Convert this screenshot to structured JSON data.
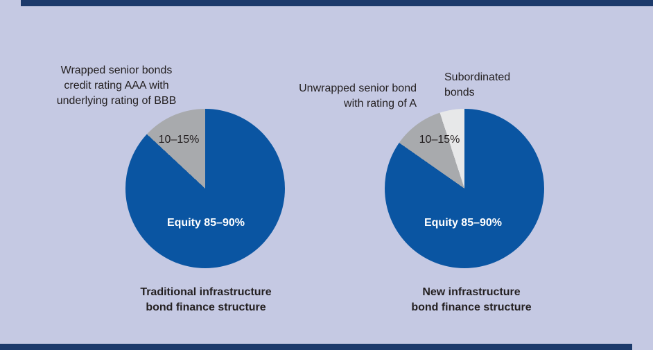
{
  "figure": {
    "background_color": "#c5c9e3",
    "rule_color": "#1c3a6b"
  },
  "colors": {
    "equity_blue": "#0a55a2",
    "senior_bond_gray": "#a8aaad",
    "subordinated_light_gray": "#e7e8e9",
    "text_dark": "#231f20",
    "text_white": "#ffffff"
  },
  "left_chart": {
    "annotation": "Wrapped senior bonds\ncredit rating AAA with\nunderlying rating of BBB",
    "slice_label": "10–15%",
    "equity_label": "Equity 85–90%",
    "caption": "Traditional infrastructure\nbond finance structure"
  },
  "right_chart": {
    "annotation_senior": "Unwrapped senior bond\nwith rating of A",
    "annotation_subordinated": "Subordinated\nbonds",
    "slice_label": "10–15%",
    "equity_label": "Equity 85–90%",
    "caption": "New infrastructure\nbond finance structure"
  },
  "chart_data": [
    {
      "type": "pie",
      "title": "Traditional infrastructure bond finance structure",
      "legend_position": "none",
      "slices": [
        {
          "label": "Equity",
          "display_label": "Equity 85–90%",
          "percent_range": "85–90%",
          "angle_deg": 313,
          "color": "#0a55a2"
        },
        {
          "label": "Wrapped senior bonds credit rating AAA with underlying rating of BBB",
          "display_label": "10–15%",
          "percent_range": "10–15%",
          "angle_deg": 47,
          "color": "#a8aaad"
        }
      ]
    },
    {
      "type": "pie",
      "title": "New infrastructure bond finance structure",
      "legend_position": "none",
      "slices": [
        {
          "label": "Equity",
          "display_label": "Equity 85–90%",
          "percent_range": "85–90%",
          "angle_deg": 305,
          "color": "#0a55a2"
        },
        {
          "label": "Unwrapped senior bond with rating of A",
          "display_label": "10–15%",
          "percent_range": "10–15%",
          "angle_deg": 37,
          "color": "#a8aaad"
        },
        {
          "label": "Subordinated bonds",
          "display_label": "Subordinated bonds",
          "angle_deg": 18,
          "color": "#e7e8e9"
        }
      ]
    }
  ]
}
